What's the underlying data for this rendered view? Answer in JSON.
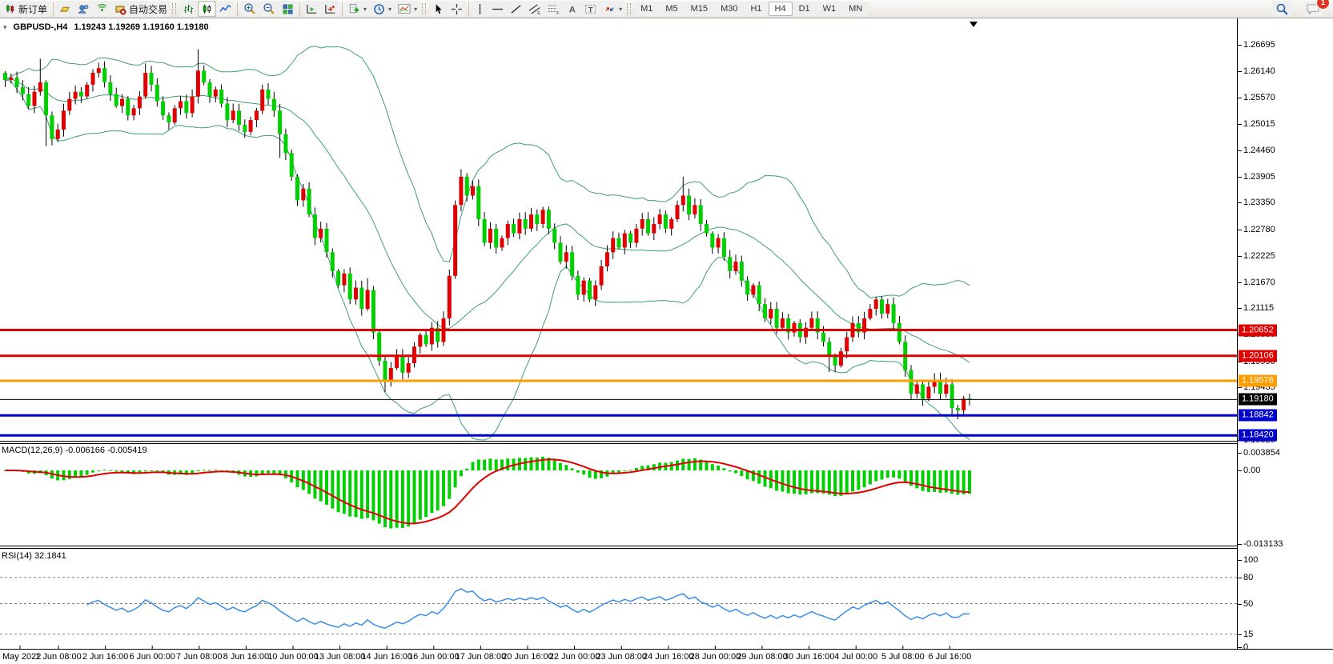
{
  "toolbar": {
    "new_order_label": "新订单",
    "autotrading_label": "自动交易",
    "timeframes": [
      "M1",
      "M5",
      "M15",
      "M30",
      "H1",
      "H4",
      "D1",
      "W1",
      "MN"
    ],
    "active_timeframe": "H4",
    "notification_count": "1"
  },
  "chart": {
    "title_symbol": "GBPUSD-,H4",
    "title_ohlc": "1.19243 1.19269 1.19160 1.19180"
  },
  "indicators": {
    "macd": {
      "label": "MACD(12,26,9)",
      "value_main": "-0.006166",
      "value_signal": "-0.005419",
      "axis": [
        "0.003854",
        "0.00",
        "-0.013133"
      ]
    },
    "rsi": {
      "label": "RSI(14)",
      "value": "32.1841",
      "axis": [
        {
          "v": 100,
          "t": "100"
        },
        {
          "v": 80,
          "t": "80"
        },
        {
          "v": 50,
          "t": "50"
        },
        {
          "v": 15,
          "t": "15"
        },
        {
          "v": 0,
          "t": "0"
        }
      ],
      "dashed_levels": [
        80,
        50,
        15
      ]
    }
  },
  "price_axis": {
    "ticks": [
      "1.26695",
      "1.26140",
      "1.25570",
      "1.25015",
      "1.24460",
      "1.23905",
      "1.23350",
      "1.22780",
      "1.22225",
      "1.21670",
      "1.21115",
      "1.20560",
      "1.19990",
      "1.19435",
      "1.18325"
    ]
  },
  "time_axis": {
    "labels": [
      "May 2022",
      "1 Jun 08:00",
      "2 Jun 16:00",
      "6 Jun 00:00",
      "7 Jun 08:00",
      "8 Jun 16:00",
      "10 Jun 00:00",
      "13 Jun 08:00",
      "14 Jun 16:00",
      "16 Jun 00:00",
      "17 Jun 08:00",
      "20 Jun 16:00",
      "22 Jun 00:00",
      "23 Jun 08:00",
      "24 Jun 16:00",
      "28 Jun 00:00",
      "29 Jun 08:00",
      "30 Jun 16:00",
      "4 Jul 00:00",
      "5 Jul 08:00",
      "6 Jul 16:00"
    ]
  },
  "chart_data": {
    "type": "candlestick",
    "title": "GBPUSD-,H4",
    "symbol": "GBPUSD",
    "timeframe": "H4",
    "last_bar": {
      "open": 1.19243,
      "high": 1.19269,
      "low": 1.1916,
      "close": 1.1918
    },
    "price_range_visible": [
      1.18325,
      1.26695
    ],
    "closes": [
      1.2595,
      1.26,
      1.258,
      1.2565,
      1.254,
      1.257,
      1.259,
      1.252,
      1.247,
      1.249,
      1.253,
      1.2555,
      1.257,
      1.256,
      1.2585,
      1.261,
      1.262,
      1.259,
      1.2565,
      1.254,
      1.2555,
      1.252,
      1.2535,
      1.256,
      1.261,
      1.2585,
      1.255,
      1.252,
      1.2505,
      1.2535,
      1.255,
      1.2525,
      1.256,
      1.2615,
      1.259,
      1.256,
      1.2575,
      1.2545,
      1.251,
      1.253,
      1.25,
      1.2485,
      1.251,
      1.253,
      1.2575,
      1.2555,
      1.253,
      1.248,
      1.244,
      1.239,
      1.234,
      1.2365,
      1.231,
      1.226,
      1.228,
      1.223,
      1.219,
      1.216,
      1.2185,
      1.213,
      1.2155,
      1.211,
      1.215,
      1.206,
      1.2,
      1.196,
      1.1985,
      1.201,
      1.1975,
      1.1995,
      1.203,
      1.2055,
      1.2035,
      1.207,
      1.204,
      1.209,
      1.218,
      1.233,
      1.239,
      1.235,
      1.237,
      1.23,
      1.225,
      1.228,
      1.224,
      1.226,
      1.229,
      1.227,
      1.23,
      1.228,
      1.231,
      1.229,
      1.232,
      1.228,
      1.225,
      1.221,
      1.223,
      1.218,
      1.214,
      1.217,
      1.213,
      1.216,
      1.22,
      1.223,
      1.226,
      1.224,
      1.227,
      1.225,
      1.228,
      1.23,
      1.227,
      1.229,
      1.231,
      1.228,
      1.23,
      1.233,
      1.235,
      1.231,
      1.233,
      1.229,
      1.227,
      1.224,
      1.226,
      1.222,
      1.219,
      1.221,
      1.217,
      1.214,
      1.216,
      1.212,
      1.209,
      1.211,
      1.207,
      1.209,
      1.206,
      1.208,
      1.205,
      1.207,
      1.209,
      1.206,
      1.204,
      1.201,
      1.199,
      1.202,
      1.205,
      1.208,
      1.206,
      1.209,
      1.211,
      1.213,
      1.21,
      1.212,
      1.208,
      1.204,
      1.198,
      1.193,
      1.195,
      1.192,
      1.1945,
      1.196,
      1.193,
      1.195,
      1.19,
      1.1895,
      1.192,
      1.1918
    ],
    "wick_overrides": {
      "6": {
        "high": 1.264
      },
      "7": {
        "low": 1.2455
      },
      "24": {
        "high": 1.263
      },
      "33": {
        "high": 1.266
      },
      "47": {
        "low": 1.243
      },
      "62": {
        "high": 1.2175
      },
      "65": {
        "low": 1.1934
      },
      "78": {
        "high": 1.2406
      },
      "116": {
        "high": 1.239
      },
      "141": {
        "low": 1.1976
      },
      "163": {
        "low": 1.1876
      }
    },
    "overlays": {
      "bollinger": {
        "period": 20,
        "deviation": 2
      },
      "macd": {
        "fast": 12,
        "slow": 26,
        "signal": 9,
        "current_main": -0.006166,
        "current_signal": -0.005419,
        "axis_max": 0.003854,
        "axis_min": -0.013133
      },
      "rsi": {
        "period": 14,
        "current": 32.1841,
        "axis_range": [
          0,
          100
        ],
        "levels": [
          80,
          50,
          15
        ]
      }
    },
    "hlines": [
      {
        "price": 1.20652,
        "label": "1.20652",
        "color": "#e00000",
        "width": 3
      },
      {
        "price": 1.20106,
        "label": "1.20106",
        "color": "#e00000",
        "width": 3
      },
      {
        "price": 1.19576,
        "label": "1.19576",
        "color": "#ff9c00",
        "width": 3
      },
      {
        "price": 1.1918,
        "label": "1.19180",
        "color": "#000000",
        "width": 1
      },
      {
        "price": 1.18842,
        "label": "1.18842",
        "color": "#0000cc",
        "width": 3
      },
      {
        "price": 1.1842,
        "label": "1.18420",
        "color": "#0000cc",
        "width": 3
      }
    ],
    "colors": {
      "up": "#e00000",
      "down": "#00cf00",
      "bollinger": "#3f9e6e",
      "macd_hist": "#00cf00",
      "macd_signal": "#e00000",
      "rsi": "#3a8ee6"
    }
  }
}
